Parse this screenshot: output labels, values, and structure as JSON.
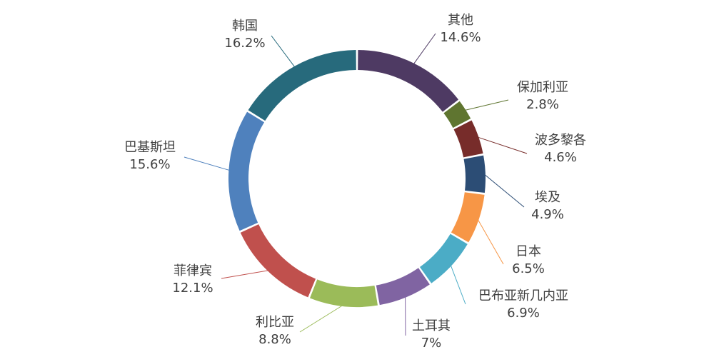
{
  "chart_data": {
    "type": "pie",
    "donut": true,
    "start_angle_deg": 0,
    "direction": "clockwise",
    "title": "",
    "legend": "none",
    "slices": [
      {
        "label": "其他",
        "value": 14.6,
        "value_label": "14.6%",
        "color": "#4e3a63"
      },
      {
        "label": "保加利亚",
        "value": 2.8,
        "value_label": "2.8%",
        "color": "#5f7530"
      },
      {
        "label": "波多黎各",
        "value": 4.6,
        "value_label": "4.6%",
        "color": "#772c2a"
      },
      {
        "label": "埃及",
        "value": 4.9,
        "value_label": "4.9%",
        "color": "#2c4d75"
      },
      {
        "label": "日本",
        "value": 6.5,
        "value_label": "6.5%",
        "color": "#f79646"
      },
      {
        "label": "巴布亚新几内亚",
        "value": 6.9,
        "value_label": "6.9%",
        "color": "#4bacc6"
      },
      {
        "label": "土耳其",
        "value": 7.0,
        "value_label": "7%",
        "color": "#8064a2"
      },
      {
        "label": "利比亚",
        "value": 8.8,
        "value_label": "8.8%",
        "color": "#9bbb59"
      },
      {
        "label": "菲律宾",
        "value": 12.1,
        "value_label": "12.1%",
        "color": "#c0504d"
      },
      {
        "label": "巴基斯坦",
        "value": 15.6,
        "value_label": "15.6%",
        "color": "#4f81bd"
      },
      {
        "label": "韩国",
        "value": 16.2,
        "value_label": "16.2%",
        "color": "#276a7c"
      }
    ]
  }
}
